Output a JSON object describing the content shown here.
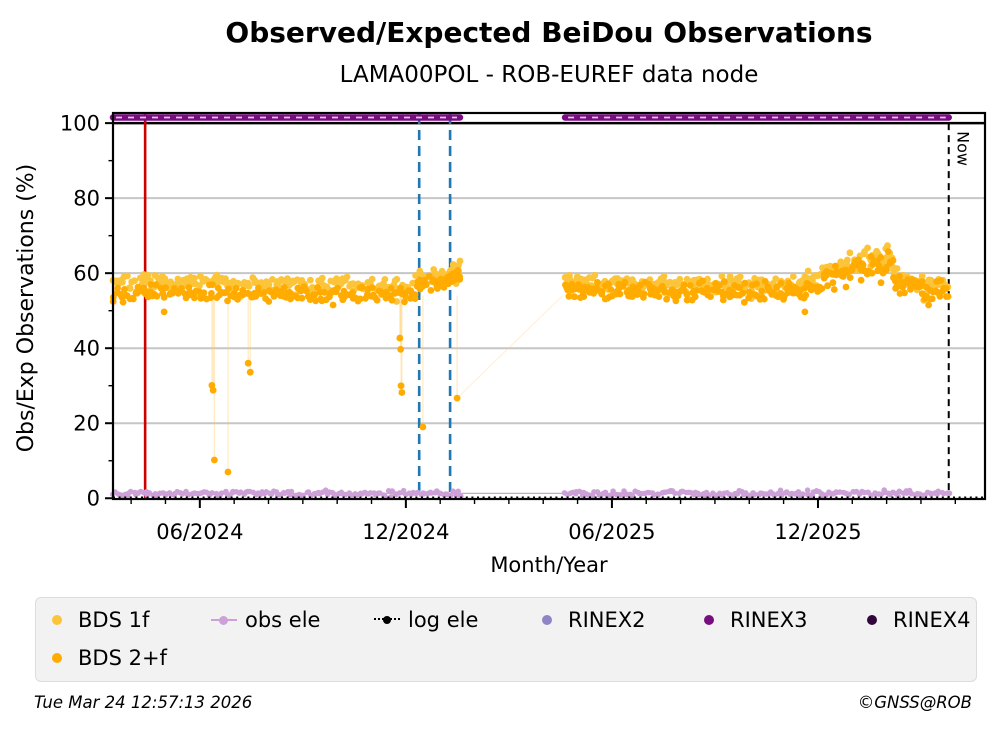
{
  "chart": {
    "title": "Observed/Expected BeiDou Observations",
    "subtitle": "LAMA00POL - ROB-EUREF data node"
  },
  "axes": {
    "xlabel": "Month/Year",
    "ylabel": "Obs/Exp Observations (%)"
  },
  "footer": {
    "timestamp": "Tue Mar 24 12:57:13 2026",
    "credit": "©GNSS@ROB"
  },
  "legend": {
    "items": [
      {
        "label": "BDS 1f",
        "color": "#FCC438",
        "marker": "dot"
      },
      {
        "label": "BDS 2+f",
        "color": "#FFAB00",
        "marker": "dot"
      },
      {
        "label": "obs ele",
        "color": "#CDA0D8",
        "marker": "line-dot"
      },
      {
        "label": "log ele",
        "color": "#000000",
        "marker": "dotted-line-dot"
      },
      {
        "label": "RINEX2",
        "color": "#8D85C8",
        "marker": "dot"
      },
      {
        "label": "RINEX3",
        "color": "#790D80",
        "marker": "dot"
      },
      {
        "label": "RINEX4",
        "color": "#30083C",
        "marker": "dot"
      }
    ]
  },
  "chart_data": {
    "type": "scatter",
    "title": "Observed/Expected BeiDou Observations",
    "subtitle": "LAMA00POL - ROB-EUREF data node",
    "xlabel": "Month/Year",
    "ylabel": "Obs/Exp Observations (%)",
    "xlim_decimal_year": [
      2024.206,
      2026.322
    ],
    "ylim": [
      -0.2,
      102.7
    ],
    "grid": "horizontal-major",
    "grid_color": "#c6c6c6",
    "x_major_ticks": [
      {
        "t": 2024.4167,
        "label": "06/2024"
      },
      {
        "t": 2024.9167,
        "label": "12/2024"
      },
      {
        "t": 2025.4167,
        "label": "06/2025"
      },
      {
        "t": 2025.9167,
        "label": "12/2025"
      }
    ],
    "x_minor_tick_step_years": 0.08333,
    "x_minor_tick_start": 2024.25,
    "y_major_ticks": [
      0,
      20,
      40,
      60,
      80,
      100
    ],
    "y_minor_ticks": [
      10,
      30,
      50,
      70,
      90
    ],
    "reference_lines": {
      "hundred_percent": {
        "value": 100,
        "color": "#000000",
        "style": "solid"
      },
      "log_ele": {
        "value": 0.15,
        "color": "#000000",
        "style": "dotted"
      }
    },
    "events": [
      {
        "name": "red-event-line",
        "t": 2024.284,
        "color": "#CC0000",
        "style": "solid"
      },
      {
        "name": "blue-window-start",
        "t": 2024.949,
        "color": "#1F77B4",
        "style": "dashed"
      },
      {
        "name": "blue-window-end",
        "t": 2025.024,
        "color": "#1F77B4",
        "style": "dashed"
      },
      {
        "name": "now-line",
        "t": 2026.234,
        "color": "#000000",
        "style": "dashed",
        "label": "Now"
      }
    ],
    "series": {
      "rinex3": {
        "type": "thick-line",
        "color": "#790D80",
        "value": 101.5,
        "width": 6.5,
        "overlay_dash_color": "#DFC6EA",
        "segments": [
          [
            2024.206,
            2025.048
          ],
          [
            2025.303,
            2026.234
          ]
        ]
      },
      "bds1f": {
        "type": "scatter-band",
        "color": "#FCC438",
        "radius": 3.4,
        "seed": 7,
        "segments": [
          {
            "t0": 2024.206,
            "t1": 2024.939,
            "v0": 58.0,
            "v1": 56.6,
            "jitter": 1.5,
            "n": 175
          },
          {
            "t0": 2024.939,
            "t1": 2025.024,
            "v0": 59.0,
            "v1": 59.6,
            "jitter": 1.5,
            "n": 24
          },
          {
            "t0": 2025.024,
            "t1": 2025.048,
            "v0": 60.5,
            "v1": 61.8,
            "jitter": 2.0,
            "n": 10
          },
          {
            "t0": 2025.303,
            "t1": 2025.885,
            "v0": 57.4,
            "v1": 57.0,
            "jitter": 1.7,
            "n": 155
          },
          {
            "t0": 2025.885,
            "t1": 2025.958,
            "v0": 58.2,
            "v1": 61.0,
            "jitter": 2.0,
            "n": 24
          },
          {
            "t0": 2025.958,
            "t1": 2026.1,
            "v0": 62.5,
            "v1": 64.5,
            "jitter": 2.6,
            "n": 45
          },
          {
            "t0": 2026.1,
            "t1": 2026.234,
            "v0": 59.0,
            "v1": 56.5,
            "jitter": 2.0,
            "n": 42
          }
        ]
      },
      "bds2f": {
        "type": "scatter-band",
        "color": "#FFAB00",
        "radius": 3.4,
        "seed": 13,
        "segments": [
          {
            "t0": 2024.206,
            "t1": 2024.939,
            "v0": 55.0,
            "v1": 54.2,
            "jitter": 1.7,
            "n": 175
          },
          {
            "t0": 2024.939,
            "t1": 2025.024,
            "v0": 57.2,
            "v1": 58.0,
            "jitter": 1.6,
            "n": 24
          },
          {
            "t0": 2025.024,
            "t1": 2025.048,
            "v0": 59.0,
            "v1": 60.2,
            "jitter": 2.2,
            "n": 10
          },
          {
            "t0": 2025.303,
            "t1": 2025.885,
            "v0": 55.6,
            "v1": 55.2,
            "jitter": 1.8,
            "n": 155
          },
          {
            "t0": 2025.885,
            "t1": 2025.958,
            "v0": 56.6,
            "v1": 59.0,
            "jitter": 2.0,
            "n": 24
          },
          {
            "t0": 2025.958,
            "t1": 2026.1,
            "v0": 60.5,
            "v1": 62.5,
            "jitter": 2.6,
            "n": 45
          },
          {
            "t0": 2026.1,
            "t1": 2026.234,
            "v0": 57.0,
            "v1": 55.0,
            "jitter": 2.2,
            "n": 42
          }
        ],
        "outliers": [
          [
            2024.446,
            30.1
          ],
          [
            2024.449,
            28.8
          ],
          [
            2024.452,
            10.2
          ],
          [
            2024.485,
            7.0
          ],
          [
            2024.534,
            36.0
          ],
          [
            2024.539,
            33.6
          ],
          [
            2024.902,
            42.7
          ],
          [
            2024.904,
            39.7
          ],
          [
            2024.905,
            30.0
          ],
          [
            2024.907,
            28.2
          ],
          [
            2024.958,
            19.0
          ],
          [
            2025.041,
            26.7
          ]
        ],
        "faint_links": [
          [
            2025.041,
            26.7,
            2025.297,
            54.0
          ]
        ]
      },
      "obs_ele": {
        "type": "line-scatter",
        "color": "#CDA0D8",
        "radius": 2.8,
        "seed": 21,
        "value": 1.3,
        "jitter": 0.7,
        "line_segments": [
          [
            2024.206,
            2026.234
          ]
        ],
        "dot_segments": [
          {
            "t0": 2024.206,
            "t1": 2025.048,
            "n": 150
          },
          {
            "t0": 2025.303,
            "t1": 2026.234,
            "n": 160
          }
        ]
      },
      "log_ele": {
        "type": "dotted-line",
        "color": "#000000",
        "value": 0.15,
        "segments": [
          [
            2024.206,
            2026.322
          ]
        ]
      }
    }
  }
}
